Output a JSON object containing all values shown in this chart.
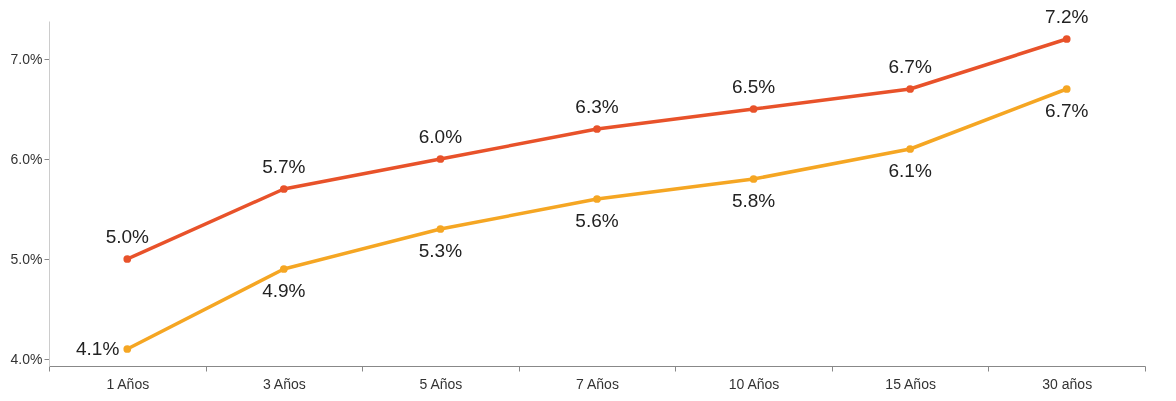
{
  "chart_data": {
    "type": "line",
    "categories": [
      "1 Años",
      "3 Años",
      "5 Años",
      "7 Años",
      "10 Años",
      "15 Años",
      "30 años"
    ],
    "series": [
      {
        "color": "#e8522a",
        "values": [
          5.0,
          5.7,
          6.0,
          6.3,
          6.5,
          6.7,
          7.2
        ],
        "value_labels": [
          "5.0%",
          "5.7%",
          "6.0%",
          "6.3%",
          "6.5%",
          "6.7%",
          "7.2%"
        ]
      },
      {
        "color": "#f5a623",
        "values": [
          4.1,
          4.9,
          5.3,
          5.6,
          5.8,
          6.1,
          6.7
        ],
        "value_labels": [
          "4.1%",
          "4.9%",
          "5.3%",
          "5.6%",
          "5.8%",
          "6.1%",
          "6.7%"
        ]
      }
    ],
    "ylim": [
      3.93,
      7.38
    ],
    "yticks": [
      {
        "value": 4,
        "label": "4.0%"
      },
      {
        "value": 5,
        "label": "5.0%"
      },
      {
        "value": 6,
        "label": "6.0%"
      },
      {
        "value": 7,
        "label": "7.0%"
      }
    ],
    "marker": "circle",
    "line_style": "solid"
  }
}
